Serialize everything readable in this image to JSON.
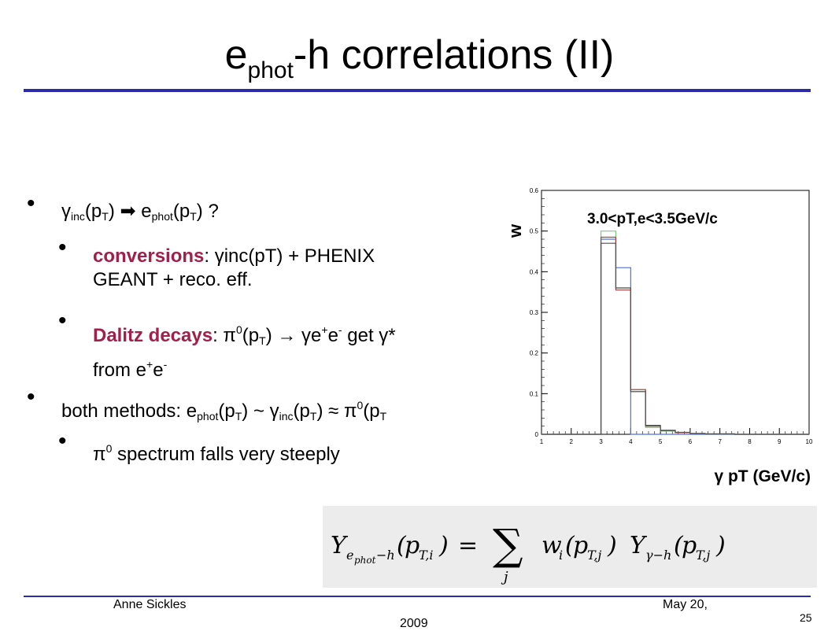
{
  "slide": {
    "title_main": "e",
    "title_sub": "phot",
    "title_rest": "-h correlations (II)",
    "page_number": "25",
    "footer_author": "Anne Sickles",
    "footer_date_line1": "May 20,",
    "footer_date_line2": "2009"
  },
  "bullets": {
    "b1": {
      "g": "γ",
      "g_sub": "inc",
      "p1": "(p",
      "T1": "T",
      "p2": ")",
      "arrow": " ➡ ",
      "e": "e",
      "e_sub": "phot",
      "p3": "(p",
      "T2": "T",
      "p4": ") ?"
    },
    "b1a": {
      "emph": "conversions",
      "rest1": ": γinc(pT) + PHENIX",
      "rest2": "GEANT + reco. eff."
    },
    "b1b": {
      "emph": "Dalitz decays",
      "t1": ": π",
      "sup0": "0",
      "t2": "(p",
      "T": "T",
      "t3": ") → γe",
      "sup1": "+",
      "t4": "e",
      "sup2": "-",
      "t5": " get γ*",
      "line2a": "from e",
      "sup3": "+",
      "line2b": "e",
      "sup4": "-"
    },
    "b2": {
      "t1": "both methods: e",
      "s1": "phot",
      "t2": "(p",
      "s2": "T",
      "t3": ") ~ γ",
      "s3": "inc",
      "t4": "(p",
      "s4": "T",
      "t5": ") ≈ π",
      "sup0": "0",
      "t6": "(p",
      "s5": "T"
    },
    "b2a": {
      "t1": "π",
      "sup0": "0",
      "t2": " spectrum falls very steeply"
    }
  },
  "chart_data": {
    "type": "histogram",
    "title": "3.0<pT,e<3.5GeV/c",
    "ylabel": "w",
    "xlabel": "γ pT (GeV/c)",
    "xlim": [
      1,
      10
    ],
    "ylim": [
      0,
      0.6
    ],
    "xticks": [
      "1",
      "2",
      "3",
      "4",
      "5",
      "6",
      "7",
      "8",
      "9",
      "10"
    ],
    "yticks": [
      "0",
      "0.1",
      "0.2",
      "0.3",
      "0.4",
      "0.5",
      "0.6"
    ],
    "bin_edges": [
      3.0,
      3.5,
      4.0,
      4.5,
      5.0,
      5.5,
      6.0,
      6.5,
      7.0,
      7.5,
      8.0
    ],
    "series": [
      {
        "color": "#4d6fe0",
        "values": [
          0.48,
          0.41,
          0.0,
          0.0,
          0.0,
          0.0,
          0.0,
          0.0,
          0.0,
          0.0
        ]
      },
      {
        "color": "#7ec87e",
        "values": [
          0.5,
          0.36,
          0.11,
          0.017,
          0.008,
          0.004,
          0.002,
          0.001,
          0.001,
          0.0
        ]
      },
      {
        "color": "#a04040",
        "values": [
          0.485,
          0.355,
          0.11,
          0.02,
          0.009,
          0.004,
          0.002,
          0.001,
          0.001,
          0.0
        ]
      },
      {
        "color": "#505050",
        "values": [
          0.47,
          0.36,
          0.105,
          0.022,
          0.01,
          0.005,
          0.002,
          0.001,
          0.001,
          0.0
        ]
      }
    ]
  },
  "formula": {
    "text": "Y(e_phot−h)(p_T,i) = Σ_j w_i(p_T,j) Y(γ−h)(p_T,j)"
  }
}
